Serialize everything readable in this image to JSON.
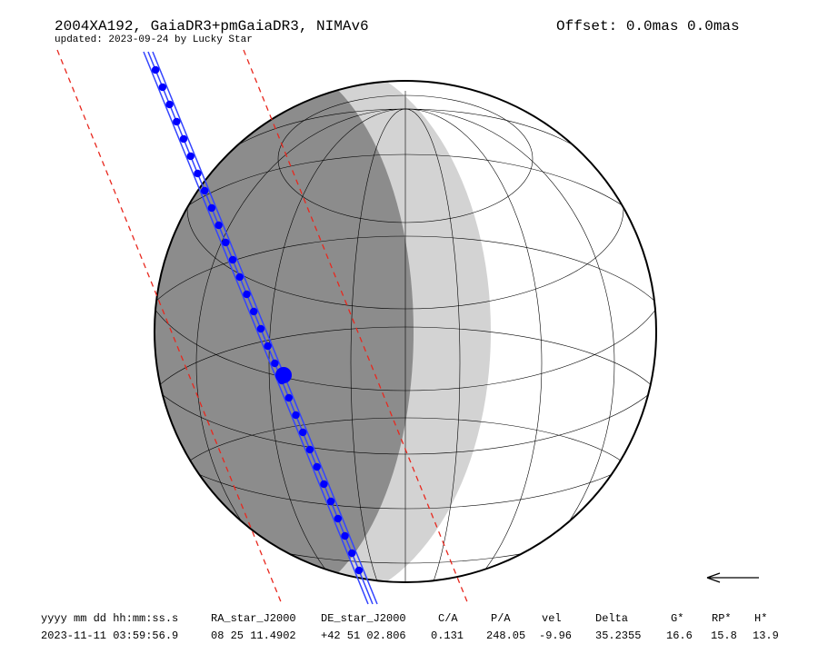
{
  "header": {
    "title": "2004XA192, GaiaDR3+pmGaiaDR3, NIMAv6",
    "subtitle": "updated: 2023-09-24 by Lucky Star",
    "offset": "Offset: 0.0mas 0.0mas"
  },
  "table": {
    "columns": [
      "yyyy mm dd hh:mm:ss.s",
      "RA_star_J2000",
      "DE_star_J2000",
      "C/A",
      "P/A",
      "vel",
      "Delta",
      "G*",
      "RP*",
      "H*"
    ],
    "rows": [
      [
        "2023-11-11 03:59:56.9",
        "08 25 11.4902",
        "+42 51 02.806",
        "0.131",
        "248.05",
        "-9.96",
        "35.2355",
        "16.6",
        "15.8",
        "13.9"
      ]
    ]
  }
}
